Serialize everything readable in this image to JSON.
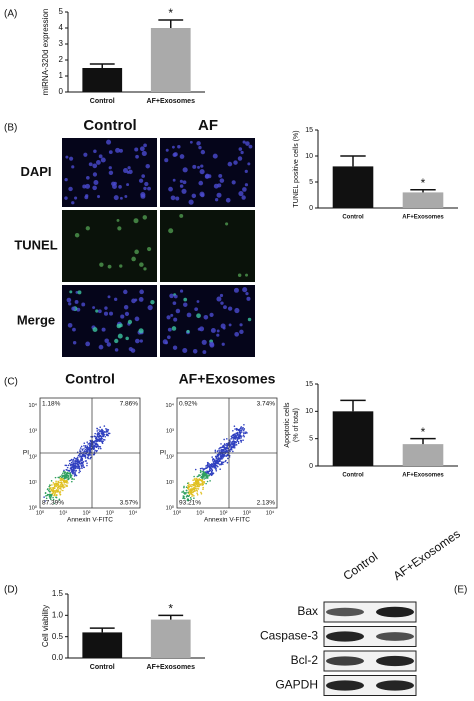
{
  "chart_data": [
    {
      "type": "bar",
      "panel": "(A)",
      "ylabel": "miRNA-320d expression",
      "categories": [
        "Control",
        "AF+Exosomes"
      ],
      "values": [
        1.5,
        4.0
      ],
      "errors": [
        0.25,
        0.5
      ],
      "colors": [
        "#111111",
        "#aaaaaa"
      ],
      "annotation": "*",
      "ylim": [
        0,
        5
      ],
      "yticks": [
        0,
        1,
        2,
        3,
        4,
        5
      ]
    },
    {
      "type": "bar",
      "ylabel": "TUNEL positive cells (%)",
      "categories": [
        "Control",
        "AF+Exosomes"
      ],
      "values": [
        8,
        3
      ],
      "errors": [
        2,
        0.5
      ],
      "colors": [
        "#111111",
        "#aaaaaa"
      ],
      "annotation": "*",
      "ylim": [
        0,
        15
      ],
      "yticks": [
        0,
        5,
        10,
        15
      ]
    },
    {
      "type": "bar",
      "ylabel": [
        "Apoptotic cells",
        "(% of total)"
      ],
      "categories": [
        "Control",
        "AF+Exosomes"
      ],
      "values": [
        10,
        4
      ],
      "errors": [
        2,
        1
      ],
      "colors": [
        "#111111",
        "#aaaaaa"
      ],
      "annotation": "*",
      "ylim": [
        0,
        15
      ],
      "yticks": [
        0,
        5,
        10,
        15
      ]
    },
    {
      "type": "bar",
      "panel": "(D)",
      "ylabel": "Cell viability",
      "categories": [
        "Control",
        "AF+Exosomes"
      ],
      "values": [
        0.6,
        0.9
      ],
      "errors": [
        0.1,
        0.1
      ],
      "colors": [
        "#111111",
        "#aaaaaa"
      ],
      "annotation": "*",
      "ylim": [
        0,
        1.5
      ],
      "yticks": [
        {
          "value": 0,
          "label": "0.0"
        },
        0.5,
        {
          "value": 1,
          "label": "1.0"
        },
        1.5
      ]
    }
  ],
  "figure": {
    "panel_b": {
      "label": "(B)",
      "columns": [
        "Control",
        "AF"
      ],
      "rows": [
        "DAPI",
        "TUNEL",
        "Merge"
      ]
    },
    "panel_c": {
      "label": "(C)",
      "xlabel": "Annexin V-FITC",
      "ylabel": "PI",
      "ticks": [
        "10⁰",
        "10¹",
        "10²",
        "10³",
        "10⁴"
      ],
      "plots": [
        {
          "title": "Control",
          "quadrants": [
            "1.18%",
            "7.86%",
            "87.39%",
            "3.57%"
          ]
        },
        {
          "title": "AF+Exosomes",
          "quadrants": [
            "0.92%",
            "3.74%",
            "93.21%",
            "2.13%"
          ]
        }
      ]
    },
    "panel_e": {
      "label": "(E)",
      "columns": [
        "Control",
        "AF+Exosomes"
      ],
      "rows": [
        "Bax",
        "Caspase-3",
        "Bcl-2",
        "GAPDH"
      ]
    }
  }
}
